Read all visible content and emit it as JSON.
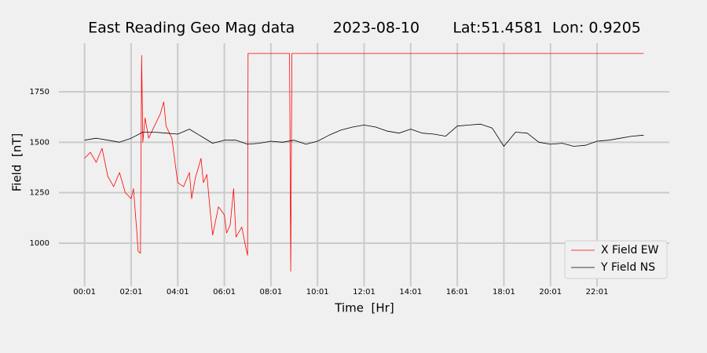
{
  "chart_data": {
    "type": "line",
    "title": "East Reading Geo Mag data        2023-08-10       Lat:51.4581  Lon: 0.9205",
    "x_label": "Time  [Hr]",
    "y_label": "Field  [nT]",
    "xlim": [
      -1.1,
      25.1
    ],
    "ylim": [
      786,
      1991
    ],
    "xticks": [
      {
        "value": 0,
        "label": "00:01"
      },
      {
        "value": 2,
        "label": "02:01"
      },
      {
        "value": 4,
        "label": "04:01"
      },
      {
        "value": 6,
        "label": "06:01"
      },
      {
        "value": 8,
        "label": "08:01"
      },
      {
        "value": 10,
        "label": "10:01"
      },
      {
        "value": 12,
        "label": "12:01"
      },
      {
        "value": 14,
        "label": "14:01"
      },
      {
        "value": 16,
        "label": "16:01"
      },
      {
        "value": 18,
        "label": "18:01"
      },
      {
        "value": 20,
        "label": "20:01"
      },
      {
        "value": 22,
        "label": "22:01"
      }
    ],
    "yticks": [
      1000,
      1250,
      1500,
      1750
    ],
    "grid": true,
    "legend": "lower right",
    "series": [
      {
        "name": "X Field EW",
        "color": "#ff0000",
        "x": [
          0,
          0.25,
          0.5,
          0.75,
          1,
          1.25,
          1.5,
          1.75,
          2,
          2.1,
          2.25,
          2.3,
          2.4,
          2.45,
          2.5,
          2.6,
          2.75,
          3,
          3.25,
          3.4,
          3.5,
          3.75,
          4,
          4.25,
          4.5,
          4.6,
          4.75,
          5,
          5.1,
          5.25,
          5.4,
          5.5,
          5.75,
          6,
          6.1,
          6.25,
          6.4,
          6.5,
          6.75,
          6.9,
          7.0,
          7.02,
          8.8,
          8.85,
          8.9,
          24
        ],
        "values": [
          1420,
          1450,
          1400,
          1470,
          1330,
          1280,
          1350,
          1250,
          1220,
          1270,
          1050,
          960,
          950,
          1930,
          1500,
          1620,
          1520,
          1580,
          1640,
          1700,
          1580,
          1520,
          1300,
          1280,
          1350,
          1220,
          1320,
          1420,
          1300,
          1340,
          1150,
          1040,
          1180,
          1140,
          1050,
          1090,
          1270,
          1030,
          1080,
          990,
          940,
          1940,
          1940,
          860,
          1940,
          1940
        ]
      },
      {
        "name": "Y Field NS",
        "color": "#000000",
        "x": [
          0,
          0.5,
          1,
          1.5,
          2,
          2.5,
          3,
          3.5,
          4,
          4.5,
          5,
          5.5,
          6,
          6.5,
          7,
          7.5,
          8,
          8.5,
          9,
          9.5,
          10,
          10.5,
          11,
          11.5,
          12,
          12.5,
          13,
          13.5,
          14,
          14.5,
          15,
          15.5,
          16,
          16.5,
          17,
          17.5,
          18,
          18.5,
          19,
          19.5,
          20,
          20.5,
          21,
          21.5,
          22,
          22.5,
          23,
          23.5,
          24
        ],
        "values": [
          1510,
          1520,
          1510,
          1500,
          1520,
          1550,
          1550,
          1545,
          1540,
          1565,
          1530,
          1495,
          1510,
          1510,
          1490,
          1495,
          1505,
          1500,
          1510,
          1490,
          1505,
          1535,
          1560,
          1575,
          1585,
          1575,
          1555,
          1545,
          1565,
          1545,
          1540,
          1530,
          1580,
          1585,
          1590,
          1570,
          1480,
          1550,
          1545,
          1500,
          1490,
          1495,
          1480,
          1485,
          1505,
          1510,
          1520,
          1530,
          1535
        ]
      }
    ]
  }
}
